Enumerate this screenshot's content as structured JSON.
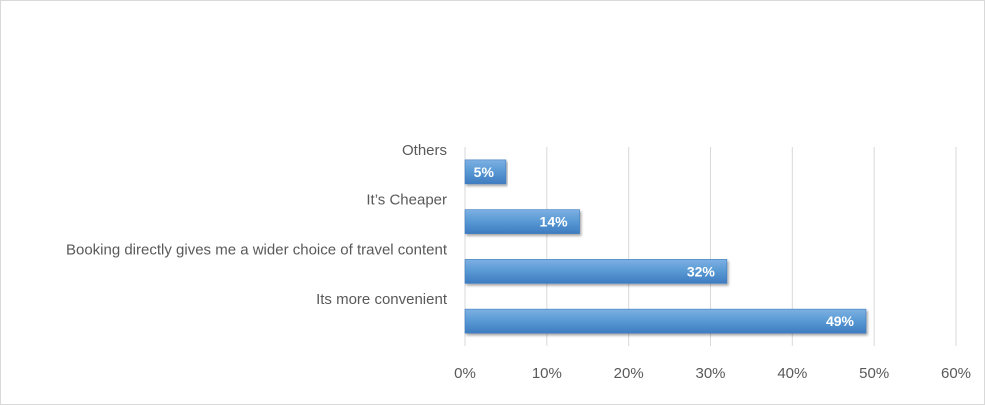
{
  "chart_data": {
    "type": "bar",
    "orientation": "horizontal",
    "categories": [
      "Its more convenient",
      "Booking directly gives me a wider choice of travel content",
      "It’s Cheaper",
      "Others"
    ],
    "values": [
      49,
      32,
      14,
      5
    ],
    "data_labels": [
      "49%",
      "32%",
      "14%",
      "5%"
    ],
    "xlim": [
      0,
      60
    ],
    "x_ticks": [
      0,
      10,
      20,
      30,
      40,
      50,
      60
    ],
    "x_tick_labels": [
      "0%",
      "10%",
      "20%",
      "30%",
      "40%",
      "50%",
      "60%"
    ],
    "grid": true,
    "bar_color": "#5B9BD5",
    "bar_color_dark": "#3E7CC0",
    "grid_color": "#d9d9d9",
    "text_color": "#595959"
  }
}
